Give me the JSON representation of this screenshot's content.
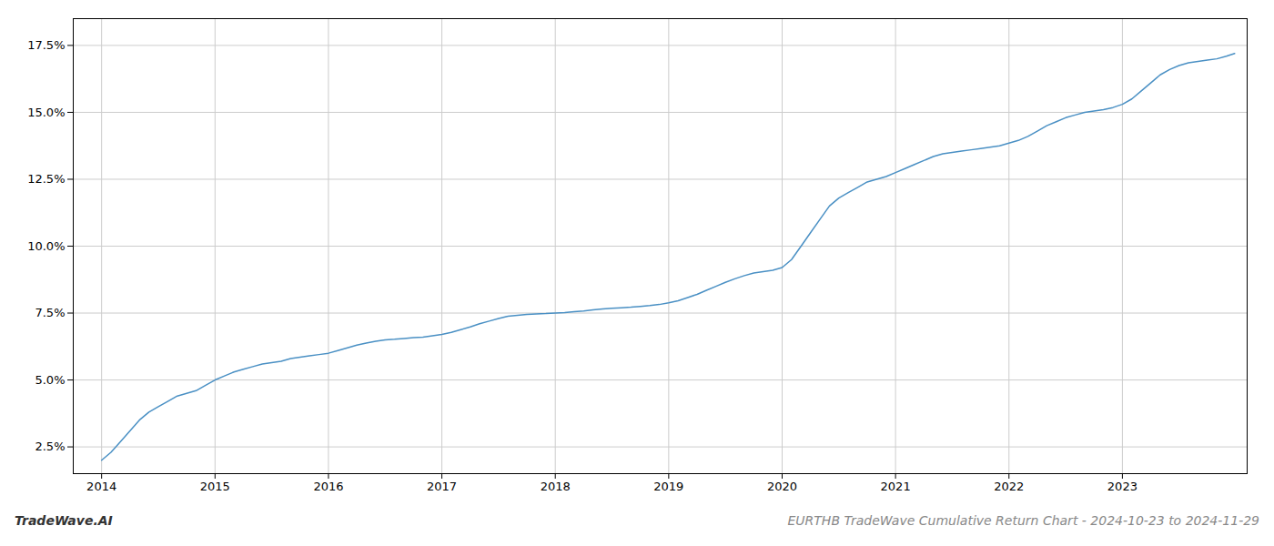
{
  "chart_data": {
    "type": "line",
    "title": "EURTHB TradeWave Cumulative Return Chart - 2024-10-23 to 2024-11-29",
    "annotations": [
      "TradeWave.AI"
    ],
    "color": "#4a90c4",
    "grid": true,
    "x": [
      2014.0,
      2014.083,
      2014.167,
      2014.25,
      2014.333,
      2014.417,
      2014.5,
      2014.583,
      2014.667,
      2014.75,
      2014.833,
      2014.917,
      2015.0,
      2015.083,
      2015.167,
      2015.25,
      2015.333,
      2015.417,
      2015.5,
      2015.583,
      2015.667,
      2015.75,
      2015.833,
      2015.917,
      2016.0,
      2016.083,
      2016.167,
      2016.25,
      2016.333,
      2016.417,
      2016.5,
      2016.583,
      2016.667,
      2016.75,
      2016.833,
      2016.917,
      2017.0,
      2017.083,
      2017.167,
      2017.25,
      2017.333,
      2017.417,
      2017.5,
      2017.583,
      2017.667,
      2017.75,
      2017.833,
      2017.917,
      2018.0,
      2018.083,
      2018.167,
      2018.25,
      2018.333,
      2018.417,
      2018.5,
      2018.583,
      2018.667,
      2018.75,
      2018.833,
      2018.917,
      2019.0,
      2019.083,
      2019.167,
      2019.25,
      2019.333,
      2019.417,
      2019.5,
      2019.583,
      2019.667,
      2019.75,
      2019.833,
      2019.917,
      2020.0,
      2020.083,
      2020.167,
      2020.25,
      2020.333,
      2020.417,
      2020.5,
      2020.583,
      2020.667,
      2020.75,
      2020.833,
      2020.917,
      2021.0,
      2021.083,
      2021.167,
      2021.25,
      2021.333,
      2021.417,
      2021.5,
      2021.583,
      2021.667,
      2021.75,
      2021.833,
      2021.917,
      2022.0,
      2022.083,
      2022.167,
      2022.25,
      2022.333,
      2022.417,
      2022.5,
      2022.583,
      2022.667,
      2022.75,
      2022.833,
      2022.917,
      2023.0,
      2023.083,
      2023.167,
      2023.25,
      2023.333,
      2023.417,
      2023.5,
      2023.583,
      2023.667,
      2023.75,
      2023.833,
      2023.917,
      2023.99
    ],
    "values": [
      2.0,
      2.3,
      2.7,
      3.1,
      3.5,
      3.8,
      4.0,
      4.2,
      4.4,
      4.5,
      4.6,
      4.8,
      5.0,
      5.15,
      5.3,
      5.4,
      5.5,
      5.6,
      5.65,
      5.7,
      5.8,
      5.85,
      5.9,
      5.95,
      6.0,
      6.1,
      6.2,
      6.3,
      6.38,
      6.45,
      6.5,
      6.52,
      6.55,
      6.58,
      6.6,
      6.65,
      6.7,
      6.78,
      6.88,
      6.98,
      7.1,
      7.2,
      7.3,
      7.38,
      7.42,
      7.45,
      7.47,
      7.48,
      7.5,
      7.52,
      7.55,
      7.58,
      7.62,
      7.65,
      7.68,
      7.7,
      7.72,
      7.75,
      7.78,
      7.82,
      7.88,
      7.96,
      8.08,
      8.2,
      8.35,
      8.5,
      8.65,
      8.78,
      8.9,
      9.0,
      9.05,
      9.1,
      9.2,
      9.5,
      10.0,
      10.5,
      11.0,
      11.5,
      11.8,
      12.0,
      12.2,
      12.4,
      12.5,
      12.6,
      12.75,
      12.9,
      13.05,
      13.2,
      13.35,
      13.45,
      13.5,
      13.55,
      13.6,
      13.65,
      13.7,
      13.75,
      13.85,
      13.95,
      14.1,
      14.3,
      14.5,
      14.65,
      14.8,
      14.9,
      15.0,
      15.05,
      15.1,
      15.18,
      15.3,
      15.5,
      15.8,
      16.1,
      16.4,
      16.6,
      16.75,
      16.85,
      16.9,
      16.95,
      17.0,
      17.1,
      17.2
    ],
    "xlim": [
      2013.75,
      2024.1
    ],
    "xticks": [
      2014,
      2015,
      2016,
      2017,
      2018,
      2019,
      2020,
      2021,
      2022,
      2023
    ],
    "ylim": [
      1.5,
      18.5
    ],
    "yticks": [
      {
        "value": 2.5,
        "label": "2.5%"
      },
      {
        "value": 5.0,
        "label": "5.0%"
      },
      {
        "value": 7.5,
        "label": "7.5%"
      },
      {
        "value": 10.0,
        "label": "10.0%"
      },
      {
        "value": 12.5,
        "label": "12.5%"
      },
      {
        "value": 15.0,
        "label": "15.0%"
      },
      {
        "value": 17.5,
        "label": "17.5%"
      }
    ]
  }
}
